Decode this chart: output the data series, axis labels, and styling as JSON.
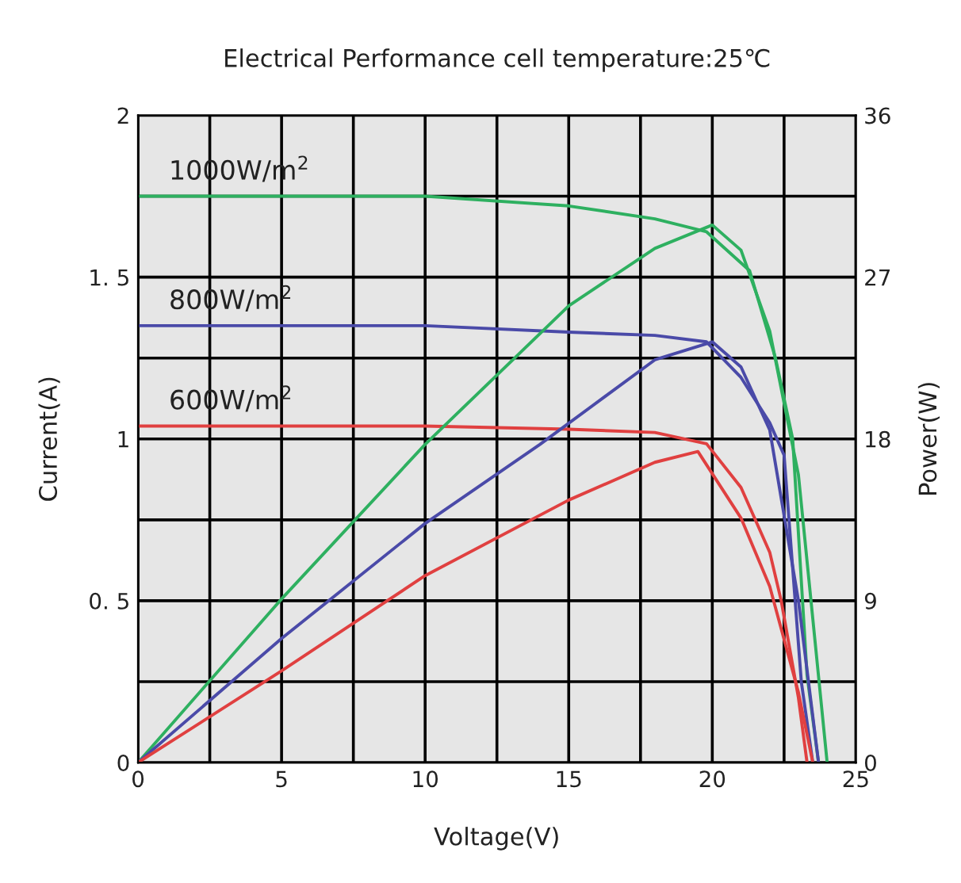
{
  "chart_data": {
    "type": "line",
    "title": "Electrical Performance cell temperature:25℃",
    "xlabel": "Voltage(V)",
    "ylabel": "Current(A)",
    "y2label": "Power(W)",
    "xlim": [
      0,
      25
    ],
    "xticks": [
      0,
      {
        "value": 2.5,
        "label": null
      },
      5,
      {
        "value": 7.5,
        "label": null
      },
      10,
      {
        "value": 12.5,
        "label": null
      },
      15,
      {
        "value": 17.5,
        "label": null
      },
      20,
      {
        "value": 22.5,
        "label": null
      },
      25
    ],
    "ylim": [
      0,
      2
    ],
    "yticks": [
      0,
      {
        "value": 0.25,
        "label": null
      },
      {
        "value": 0.5,
        "label": "0. 5"
      },
      {
        "value": 0.75,
        "label": null
      },
      1,
      {
        "value": 1.25,
        "label": null
      },
      {
        "value": 1.5,
        "label": "1. 5"
      },
      {
        "value": 1.75,
        "label": null
      },
      2
    ],
    "y2lim": [
      0,
      36
    ],
    "y2ticks": [
      0,
      9,
      18,
      27,
      36
    ],
    "grid": true,
    "legend": false,
    "marker": "none",
    "line_style": "solid",
    "series": [
      {
        "name": "1000W/m$^{2}$",
        "color": "#2eb060",
        "x": [
          0,
          5,
          10,
          15,
          18,
          19.8,
          21.3,
          22.2,
          22.8,
          23.3,
          23.7
        ],
        "values": [
          1.75,
          1.75,
          1.75,
          1.72,
          1.68,
          1.64,
          1.52,
          1.25,
          1.0,
          0.27,
          0
        ]
      },
      {
        "color": "#2eb060",
        "axis": "y2",
        "x": [
          0,
          5,
          10,
          15,
          18,
          20,
          21,
          22,
          23,
          23.5,
          24.0
        ],
        "values": [
          0,
          9.1,
          17.7,
          25.4,
          28.6,
          29.9,
          28.5,
          24,
          16,
          8,
          0
        ]
      },
      {
        "name": "800W/m$^{2}$",
        "color": "#4a4aa8",
        "x": [
          0,
          5,
          10,
          15,
          18,
          19.8,
          21,
          22,
          22.5,
          23.1,
          23.5
        ],
        "values": [
          1.35,
          1.35,
          1.35,
          1.33,
          1.32,
          1.3,
          1.19,
          1.05,
          0.95,
          0.25,
          0
        ]
      },
      {
        "color": "#4a4aa8",
        "axis": "y2",
        "x": [
          0,
          5,
          10,
          14,
          18,
          20,
          21,
          22,
          23,
          23.7
        ],
        "values": [
          0,
          6.9,
          13.3,
          17.7,
          22.4,
          23.4,
          22,
          18.5,
          9,
          0
        ]
      },
      {
        "name": "600W/m$^{2}$",
        "color": "#e04040",
        "x": [
          0,
          5,
          10,
          15,
          18,
          19.8,
          21,
          22,
          22.4,
          23,
          23.3
        ],
        "values": [
          1.04,
          1.04,
          1.04,
          1.03,
          1.02,
          0.985,
          0.85,
          0.65,
          0.5,
          0.2,
          0
        ]
      },
      {
        "color": "#e04040",
        "axis": "y2",
        "x": [
          0,
          5,
          10,
          15,
          18,
          19.5,
          21,
          22,
          23,
          23.5
        ],
        "values": [
          0,
          5.1,
          10.4,
          14.6,
          16.7,
          17.3,
          13.6,
          9.8,
          3.9,
          0
        ]
      }
    ]
  }
}
